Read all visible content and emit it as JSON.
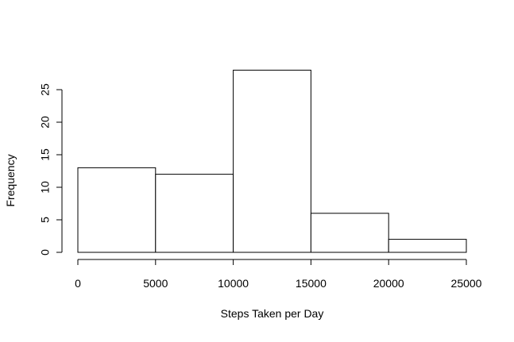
{
  "chart_data": {
    "type": "bar",
    "title": "",
    "xlabel": "Steps Taken per Day",
    "ylabel": "Frequency",
    "bins": [
      {
        "start": 0,
        "end": 5000,
        "value": 13
      },
      {
        "start": 5000,
        "end": 10000,
        "value": 12
      },
      {
        "start": 10000,
        "end": 15000,
        "value": 28
      },
      {
        "start": 15000,
        "end": 20000,
        "value": 6
      },
      {
        "start": 20000,
        "end": 25000,
        "value": 2
      }
    ],
    "xlim": [
      0,
      25000
    ],
    "ylim": [
      0,
      30
    ],
    "x_ticks": [
      0,
      5000,
      10000,
      15000,
      20000,
      25000
    ],
    "y_ticks": [
      0,
      5,
      10,
      15,
      20,
      25
    ],
    "x_tick_labels": [
      "0",
      "5000",
      "10000",
      "15000",
      "20000",
      "25000"
    ],
    "y_tick_labels": [
      "0",
      "5",
      "10",
      "15",
      "20",
      "25"
    ],
    "grid": false,
    "legend": "none",
    "colors": {
      "bar_fill": "#ffffff",
      "bar_stroke": "#000000",
      "axis": "#000000"
    }
  }
}
